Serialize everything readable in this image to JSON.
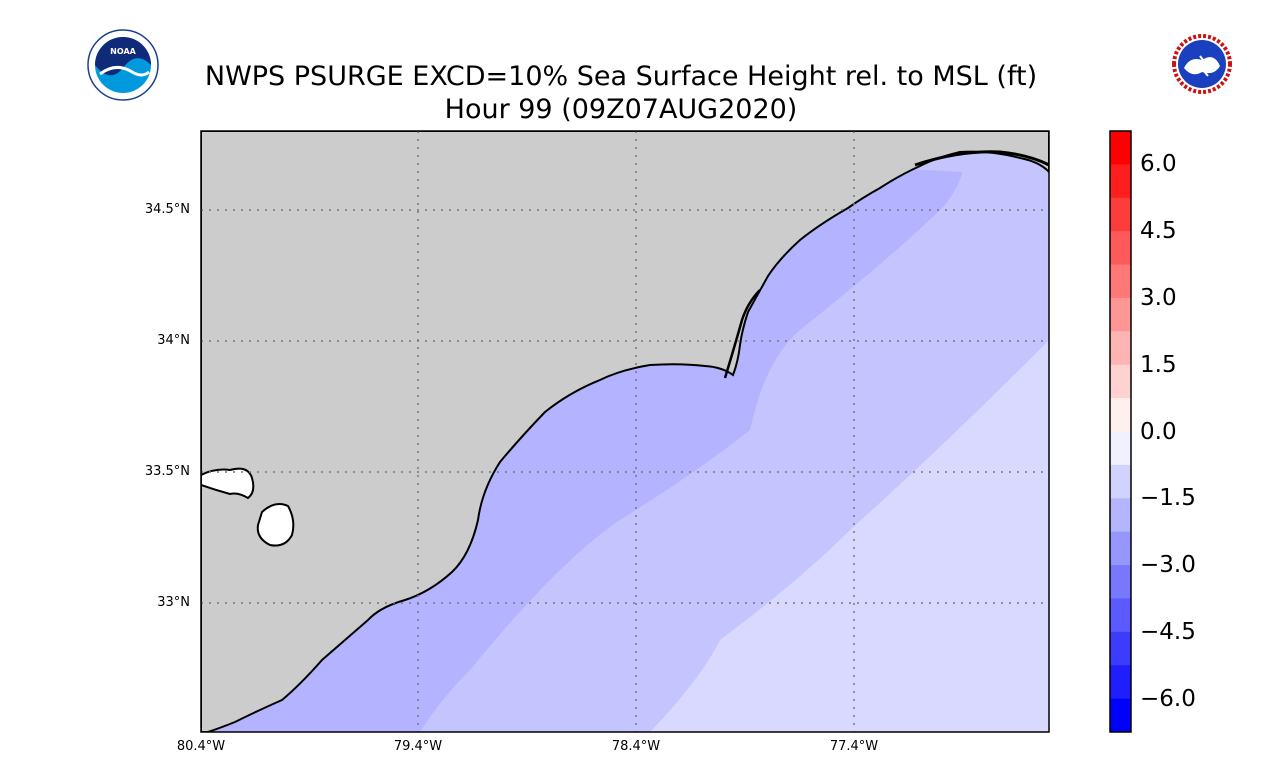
{
  "title": {
    "line1": "NWPS PSURGE EXCD=10% Sea Surface Height rel. to MSL (ft)",
    "line2": "Hour 99 (09Z07AUG2020)"
  },
  "logos": {
    "left": "noaa-logo",
    "right": "national-weather-service-logo",
    "left_text": "NOAA",
    "right_text": "NATIONAL WEATHER SERVICE"
  },
  "map": {
    "lat_labels": [
      "34.5°N",
      "34°N",
      "33.5°N",
      "33°N"
    ],
    "lon_labels": [
      "80.4°W",
      "79.4°W",
      "78.4°W",
      "77.4°W"
    ],
    "land_color": "#cccccc",
    "gridlines": "dotted"
  },
  "colorbar": {
    "tick_labels": [
      "6.0",
      "4.5",
      "3.0",
      "1.5",
      "0.0",
      "−1.5",
      "−3.0",
      "−4.5",
      "−6.0"
    ],
    "range": [
      -6.75,
      6.75
    ],
    "step": 0.75,
    "top_color": "#ff0000",
    "bottom_color": "#0000ff",
    "center_color": "#ffffff"
  },
  "surge_zones": [
    {
      "level": "-2.25 to -3.0",
      "color": "#b3b3ff"
    },
    {
      "level": "-1.5 to -2.25",
      "color": "#c4c4ff"
    },
    {
      "level": "-0.75 to -1.5",
      "color": "#d9d9ff"
    }
  ]
}
